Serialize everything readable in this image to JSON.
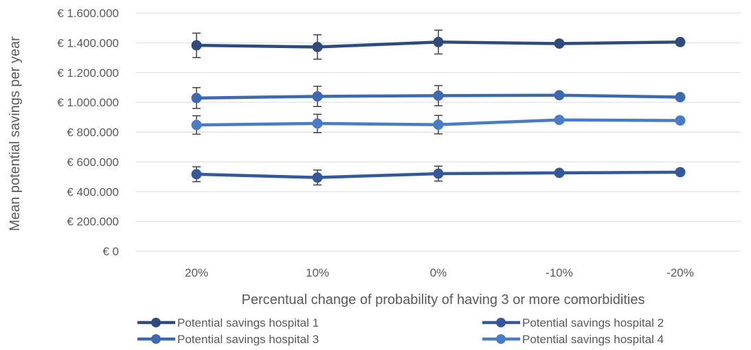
{
  "chart_data": {
    "type": "line",
    "xlabel": "Percentual change of probability of having 3 or more comorbidities",
    "ylabel": "Mean potential savings per year",
    "categories": [
      "20%",
      "10%",
      "0%",
      "-10%",
      "-20%"
    ],
    "ylim": [
      0,
      1600000
    ],
    "y_ticks": [
      {
        "value": 0,
        "label": "€ 0"
      },
      {
        "value": 200000,
        "label": "€ 200.000"
      },
      {
        "value": 400000,
        "label": "€ 400.000"
      },
      {
        "value": 600000,
        "label": "€ 600.000"
      },
      {
        "value": 800000,
        "label": "€ 800.000"
      },
      {
        "value": 1000000,
        "label": "€ 1.000.000"
      },
      {
        "value": 1200000,
        "label": "€ 1.200.000"
      },
      {
        "value": 1400000,
        "label": "€ 1.400.000"
      },
      {
        "value": 1600000,
        "label": "€ 1.600.000"
      }
    ],
    "grid": true,
    "legend_position": "bottom",
    "series": [
      {
        "name": "Potential savings hospital 1",
        "color": "#2f4b7c",
        "values": [
          1383000,
          1372000,
          1405000,
          1395000,
          1405000
        ],
        "error": [
          82000,
          82000,
          80000,
          null,
          null
        ]
      },
      {
        "name": "Potential savings hospital 2",
        "color": "#34589a",
        "values": [
          517000,
          495000,
          521000,
          526000,
          531000
        ],
        "error": [
          50000,
          50000,
          50000,
          null,
          null
        ]
      },
      {
        "name": "Potential savings hospital 3",
        "color": "#3d69b0",
        "values": [
          1029000,
          1040000,
          1045000,
          1048000,
          1035000
        ],
        "error": [
          70000,
          68000,
          68000,
          null,
          null
        ]
      },
      {
        "name": "Potential savings hospital 4",
        "color": "#4a7cc6",
        "values": [
          848000,
          858000,
          850000,
          882000,
          878000
        ],
        "error": [
          62000,
          62000,
          62000,
          null,
          null
        ]
      }
    ]
  }
}
